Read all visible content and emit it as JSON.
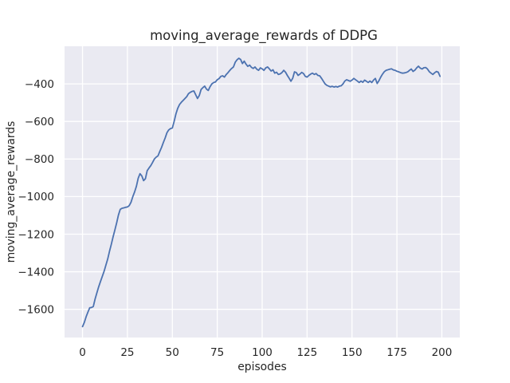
{
  "figure": {
    "background_color": "#ffffff"
  },
  "chart_data": {
    "type": "line",
    "title": "moving_average_rewards of DDPG",
    "xlabel": "episodes",
    "ylabel": "moving_average_rewards",
    "xlim": [
      -10,
      210
    ],
    "ylim": [
      -1750,
      -200
    ],
    "grid": true,
    "grid_style": "seaborn-darkgrid",
    "legend": false,
    "plot_background_color": "#eaeaf2",
    "grid_color": "#ffffff",
    "line_color": "#4c72b0",
    "text_color": "#262626",
    "xticks": [
      0,
      25,
      50,
      75,
      100,
      125,
      150,
      175,
      200
    ],
    "xtick_labels": [
      "0",
      "25",
      "50",
      "75",
      "100",
      "125",
      "150",
      "175",
      "200"
    ],
    "yticks": [
      -400,
      -600,
      -800,
      -1000,
      -1200,
      -1400,
      -1600
    ],
    "ytick_labels": [
      "−400",
      "−600",
      "−800",
      "−1000",
      "−1200",
      "−1400",
      "−1600"
    ],
    "series": [
      {
        "name": "moving_average_rewards",
        "x": [
          0,
          1,
          2,
          3,
          4,
          5,
          6,
          7,
          8,
          9,
          10,
          11,
          12,
          13,
          14,
          15,
          16,
          17,
          18,
          19,
          20,
          21,
          22,
          23,
          24,
          25,
          26,
          27,
          28,
          29,
          30,
          31,
          32,
          33,
          34,
          35,
          36,
          37,
          38,
          39,
          40,
          41,
          42,
          43,
          44,
          45,
          46,
          47,
          48,
          49,
          50,
          51,
          52,
          53,
          54,
          55,
          56,
          57,
          58,
          59,
          60,
          61,
          62,
          63,
          64,
          65,
          66,
          67,
          68,
          69,
          70,
          71,
          72,
          73,
          74,
          75,
          76,
          77,
          78,
          79,
          80,
          81,
          82,
          83,
          84,
          85,
          86,
          87,
          88,
          89,
          90,
          91,
          92,
          93,
          94,
          95,
          96,
          97,
          98,
          99,
          100,
          101,
          102,
          103,
          104,
          105,
          106,
          107,
          108,
          109,
          110,
          111,
          112,
          113,
          114,
          115,
          116,
          117,
          118,
          119,
          120,
          121,
          122,
          123,
          124,
          125,
          126,
          127,
          128,
          129,
          130,
          131,
          132,
          133,
          134,
          135,
          136,
          137,
          138,
          139,
          140,
          141,
          142,
          143,
          144,
          145,
          146,
          147,
          148,
          149,
          150,
          151,
          152,
          153,
          154,
          155,
          156,
          157,
          158,
          159,
          160,
          161,
          162,
          163,
          164,
          165,
          166,
          167,
          168,
          169,
          170,
          171,
          172,
          173,
          174,
          175,
          176,
          177,
          178,
          179,
          180,
          181,
          182,
          183,
          184,
          185,
          186,
          187,
          188,
          189,
          190,
          191,
          192,
          193,
          194,
          195,
          196,
          197,
          198,
          199
        ],
        "y": [
          -1692,
          -1670,
          -1640,
          -1615,
          -1592,
          -1590,
          -1585,
          -1545,
          -1512,
          -1480,
          -1452,
          -1425,
          -1398,
          -1365,
          -1333,
          -1292,
          -1255,
          -1215,
          -1178,
          -1140,
          -1098,
          -1068,
          -1062,
          -1060,
          -1057,
          -1055,
          -1048,
          -1030,
          -1000,
          -975,
          -945,
          -902,
          -878,
          -890,
          -915,
          -905,
          -862,
          -848,
          -835,
          -818,
          -800,
          -790,
          -783,
          -760,
          -738,
          -712,
          -688,
          -660,
          -645,
          -638,
          -635,
          -600,
          -560,
          -530,
          -510,
          -498,
          -488,
          -478,
          -468,
          -452,
          -445,
          -440,
          -438,
          -458,
          -478,
          -462,
          -430,
          -420,
          -412,
          -428,
          -435,
          -415,
          -400,
          -393,
          -390,
          -378,
          -372,
          -360,
          -357,
          -364,
          -350,
          -340,
          -328,
          -318,
          -310,
          -285,
          -272,
          -264,
          -270,
          -292,
          -279,
          -295,
          -307,
          -300,
          -312,
          -318,
          -310,
          -322,
          -328,
          -315,
          -320,
          -328,
          -315,
          -310,
          -320,
          -332,
          -325,
          -343,
          -338,
          -350,
          -347,
          -340,
          -328,
          -338,
          -355,
          -370,
          -386,
          -370,
          -336,
          -340,
          -355,
          -348,
          -339,
          -345,
          -360,
          -364,
          -355,
          -348,
          -343,
          -350,
          -345,
          -355,
          -357,
          -370,
          -385,
          -400,
          -408,
          -412,
          -416,
          -413,
          -417,
          -414,
          -417,
          -412,
          -410,
          -400,
          -385,
          -378,
          -382,
          -386,
          -380,
          -371,
          -378,
          -385,
          -393,
          -385,
          -392,
          -380,
          -386,
          -393,
          -385,
          -393,
          -380,
          -371,
          -398,
          -383,
          -364,
          -348,
          -335,
          -328,
          -325,
          -322,
          -320,
          -326,
          -328,
          -333,
          -336,
          -340,
          -343,
          -342,
          -340,
          -336,
          -328,
          -321,
          -334,
          -327,
          -315,
          -306,
          -316,
          -321,
          -314,
          -313,
          -321,
          -335,
          -343,
          -350,
          -341,
          -334,
          -338,
          -360
        ]
      }
    ]
  }
}
